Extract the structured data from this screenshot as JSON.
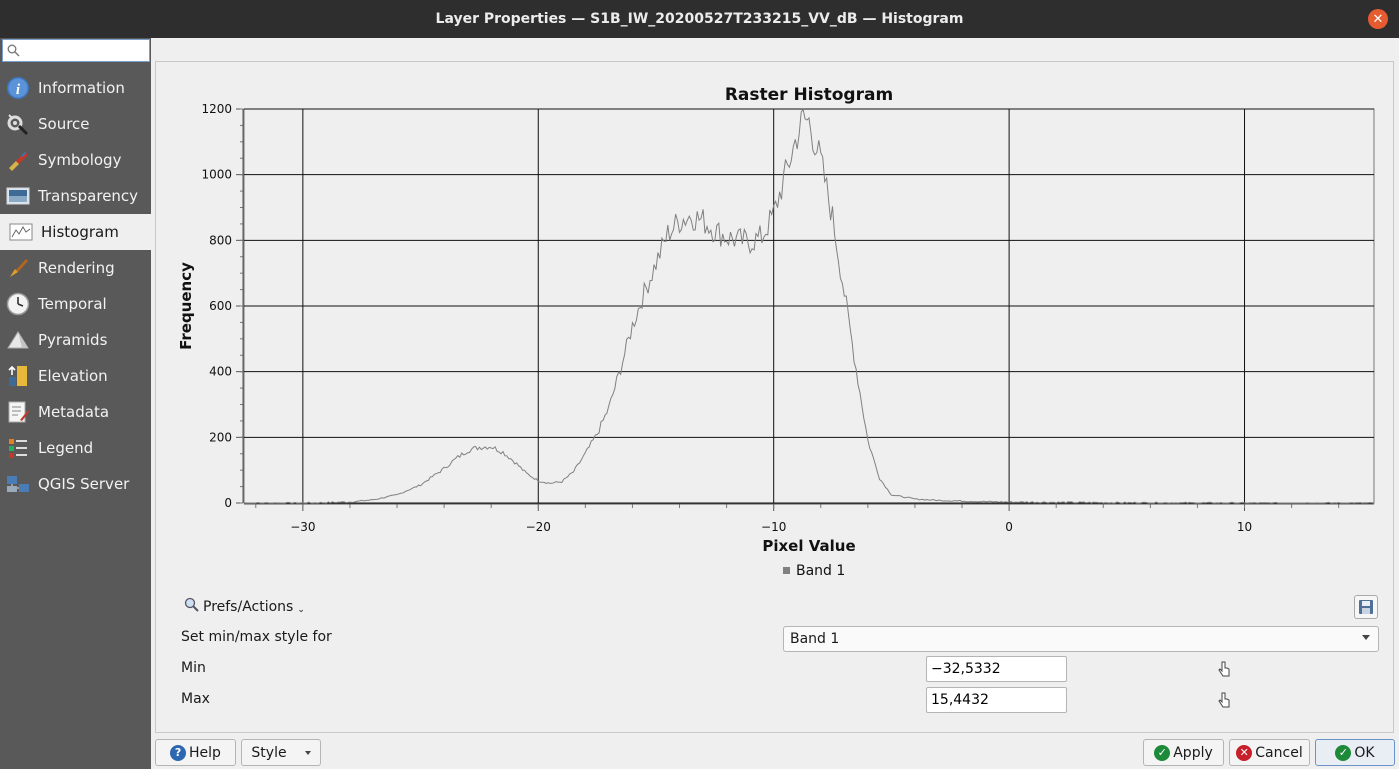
{
  "window": {
    "title": "Layer Properties — S1B_IW_20200527T233215_VV_dB — Histogram"
  },
  "sidebar": {
    "search_placeholder": "",
    "items": [
      {
        "label": "Information",
        "icon": "information-icon"
      },
      {
        "label": "Source",
        "icon": "source-icon"
      },
      {
        "label": "Symbology",
        "icon": "symbology-icon"
      },
      {
        "label": "Transparency",
        "icon": "transparency-icon"
      },
      {
        "label": "Histogram",
        "icon": "histogram-icon",
        "active": true
      },
      {
        "label": "Rendering",
        "icon": "rendering-icon"
      },
      {
        "label": "Temporal",
        "icon": "temporal-icon"
      },
      {
        "label": "Pyramids",
        "icon": "pyramids-icon"
      },
      {
        "label": "Elevation",
        "icon": "elevation-icon"
      },
      {
        "label": "Metadata",
        "icon": "metadata-icon"
      },
      {
        "label": "Legend",
        "icon": "legend-icon"
      },
      {
        "label": "QGIS Server",
        "icon": "qgis-server-icon"
      }
    ]
  },
  "chart_data": {
    "type": "line",
    "title": "Raster Histogram",
    "xlabel": "Pixel Value",
    "ylabel": "Frequency",
    "xlim": [
      -32.5,
      15.5
    ],
    "ylim": [
      0,
      1200
    ],
    "xticks": [
      -30,
      -20,
      -10,
      0,
      10
    ],
    "xtick_labels": [
      "−30",
      "−20",
      "−10",
      "0",
      "10"
    ],
    "yticks": [
      0,
      200,
      400,
      600,
      800,
      1000,
      1200
    ],
    "grid": true,
    "legend_position": "bottom",
    "series": [
      {
        "name": "Band 1",
        "color": "#808080",
        "x": [
          -32.5,
          -30,
          -28,
          -27,
          -26,
          -25,
          -24,
          -23.5,
          -23,
          -22.5,
          -22,
          -21.5,
          -21,
          -20.5,
          -20,
          -19.5,
          -19,
          -18.5,
          -18,
          -17.5,
          -17,
          -16.5,
          -16,
          -15.5,
          -15,
          -14.5,
          -14,
          -13.5,
          -13,
          -12.5,
          -12,
          -11.5,
          -11,
          -10.5,
          -10,
          -9.5,
          -9,
          -8.75,
          -8.5,
          -8,
          -7.5,
          -7,
          -6.5,
          -6,
          -5.5,
          -5,
          -4,
          -3,
          -2,
          -1,
          0,
          2,
          5,
          10,
          15.5
        ],
        "y": [
          0,
          0,
          3,
          10,
          25,
          55,
          105,
          135,
          160,
          170,
          172,
          155,
          125,
          90,
          68,
          60,
          65,
          95,
          150,
          210,
          290,
          410,
          540,
          640,
          730,
          820,
          860,
          875,
          860,
          830,
          810,
          800,
          795,
          810,
          880,
          1000,
          1120,
          1170,
          1160,
          1040,
          870,
          640,
          410,
          190,
          75,
          25,
          12,
          8,
          6,
          4,
          3,
          2,
          1,
          0,
          0
        ]
      }
    ]
  },
  "controls": {
    "prefs_label": "Prefs/Actions",
    "set_minmax_label": "Set min/max style for",
    "band_selected": "Band 1",
    "min_label": "Min",
    "min_value": "−32,5332",
    "max_label": "Max",
    "max_value": "15,4432"
  },
  "buttons": {
    "help": "Help",
    "style": "Style",
    "apply": "Apply",
    "cancel": "Cancel",
    "ok_prefix": "",
    "ok": "OK"
  },
  "colors": {
    "apply_green": "#1d8a3a",
    "cancel_red": "#c8202a",
    "help_blue": "#2e67b1"
  }
}
